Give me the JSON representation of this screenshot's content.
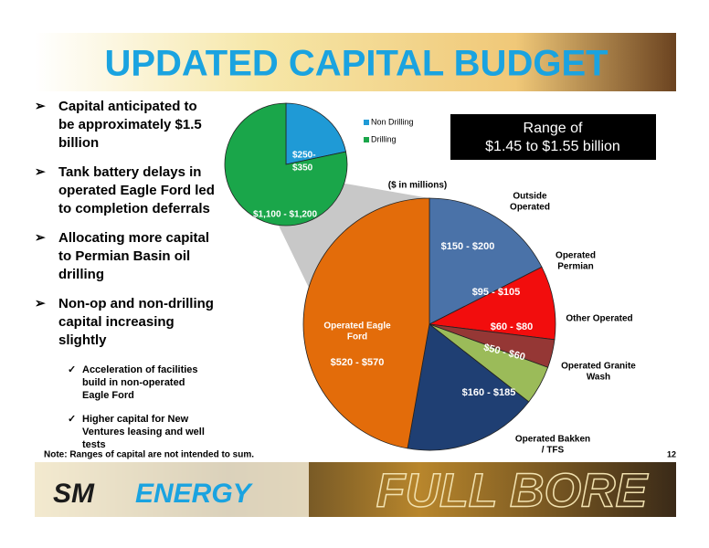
{
  "header": {
    "title": "UPDATED CAPITAL BUDGET"
  },
  "bullets": [
    {
      "text": [
        "Capital anticipated to",
        "be approximately $1.5",
        "billion"
      ]
    },
    {
      "text": [
        "Tank battery delays in",
        "operated Eagle Ford led",
        "to completion deferrals"
      ]
    },
    {
      "text": [
        "Allocating more capital",
        "to Permian Basin oil",
        "drilling"
      ]
    },
    {
      "text": [
        "Non-op and non-drilling",
        "capital increasing",
        "slightly"
      ],
      "sub": [
        [
          "Acceleration of facilities",
          "build in non-operated",
          "Eagle Ford"
        ],
        [
          "Higher capital for New",
          "Ventures leasing and well",
          "tests"
        ]
      ]
    }
  ],
  "range_box": [
    "Range of",
    "$1.45 to $1.55 billion"
  ],
  "legend": [
    "Non Drilling",
    "Drilling"
  ],
  "unit_note": "($ in millions)",
  "small_pie": {
    "non_drilling": [
      "$250-",
      "$350"
    ],
    "drilling": "$1,100 - $1,200"
  },
  "big_pie": {
    "outside_operated": {
      "name": [
        "Outside",
        "Operated"
      ],
      "range": "$150 - $200"
    },
    "operated_permian": {
      "name": [
        "Operated",
        "Permian"
      ],
      "range": "$95 - $105"
    },
    "other_operated": {
      "name": [
        "Other Operated"
      ],
      "range": "$60 - $80"
    },
    "granite_wash": {
      "name": [
        "Operated Granite",
        "Wash"
      ],
      "range": "$50 - $60"
    },
    "bakken": {
      "name": [
        "Operated Bakken",
        "/ TFS"
      ],
      "range": "$160 - $185"
    },
    "eagle_ford": {
      "name": [
        "Operated Eagle",
        "Ford"
      ],
      "range": "$520 - $570"
    }
  },
  "footer": {
    "note": "Note: Ranges of capital are not intended to sum.",
    "page_number": "12",
    "logo_sm": "SM",
    "logo_energy": "ENERGY",
    "tagline": "FULL BORE"
  }
}
